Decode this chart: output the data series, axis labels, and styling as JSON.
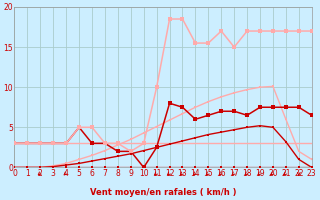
{
  "background_color": "#cceeff",
  "grid_color": "#aacccc",
  "xlabel": "Vent moyen/en rafales ( km/h )",
  "xlim": [
    0,
    23
  ],
  "ylim": [
    0,
    20
  ],
  "yticks": [
    0,
    5,
    10,
    15,
    20
  ],
  "xticks": [
    0,
    1,
    2,
    3,
    4,
    5,
    6,
    7,
    8,
    9,
    10,
    11,
    12,
    13,
    14,
    15,
    16,
    17,
    18,
    19,
    20,
    21,
    22,
    23
  ],
  "lines": [
    {
      "x": [
        0,
        1,
        2,
        3,
        4,
        5,
        6,
        7,
        8,
        9,
        10,
        11,
        12,
        13,
        14,
        15,
        16,
        17,
        18,
        19,
        20,
        21,
        22,
        23
      ],
      "y": [
        0,
        0,
        0,
        0,
        0,
        0,
        0,
        0,
        0,
        0,
        0,
        0,
        0,
        0,
        0,
        0,
        0,
        0,
        0,
        0,
        0,
        0,
        0,
        0
      ],
      "color": "#cc0000",
      "lw": 0.9,
      "marker": "s",
      "ms": 1.5,
      "zorder": 3
    },
    {
      "x": [
        0,
        1,
        2,
        3,
        4,
        5,
        6,
        7,
        8,
        9,
        10,
        11,
        12,
        13,
        14,
        15,
        16,
        17,
        18,
        19,
        20,
        21,
        22,
        23
      ],
      "y": [
        3,
        3,
        3,
        3,
        3,
        3,
        3,
        3,
        3,
        3,
        3,
        3,
        3,
        3,
        3,
        3,
        3,
        3,
        3,
        3,
        3,
        3,
        3,
        3
      ],
      "color": "#ffaaaa",
      "lw": 1.0,
      "marker": null,
      "ms": 0,
      "zorder": 2
    },
    {
      "x": [
        0,
        1,
        2,
        3,
        4,
        5,
        6,
        7,
        8,
        9,
        10,
        11,
        12,
        13,
        14,
        15,
        16,
        17,
        18,
        19,
        20,
        21,
        22,
        23
      ],
      "y": [
        0,
        0,
        0,
        0.1,
        0.3,
        0.5,
        0.8,
        1.1,
        1.4,
        1.7,
        2.1,
        2.5,
        2.9,
        3.3,
        3.7,
        4.1,
        4.4,
        4.7,
        5.0,
        5.2,
        5.0,
        3.2,
        1.0,
        0.0
      ],
      "color": "#cc0000",
      "lw": 1.0,
      "marker": "s",
      "ms": 1.8,
      "zorder": 3
    },
    {
      "x": [
        0,
        1,
        2,
        3,
        4,
        5,
        6,
        7,
        8,
        9,
        10,
        11,
        12,
        13,
        14,
        15,
        16,
        17,
        18,
        19,
        20,
        21,
        22,
        23
      ],
      "y": [
        0,
        0,
        0,
        0.2,
        0.5,
        1.0,
        1.5,
        2.1,
        2.8,
        3.5,
        4.3,
        5.1,
        5.9,
        6.7,
        7.5,
        8.2,
        8.8,
        9.3,
        9.7,
        10.0,
        10.1,
        6.0,
        2.0,
        1.0
      ],
      "color": "#ffaaaa",
      "lw": 1.0,
      "marker": "s",
      "ms": 1.8,
      "zorder": 2
    },
    {
      "x": [
        0,
        1,
        2,
        3,
        4,
        5,
        6,
        7,
        8,
        9,
        10,
        11,
        12,
        13,
        14,
        15,
        16,
        17,
        18,
        19,
        20,
        21,
        22,
        23
      ],
      "y": [
        3,
        3,
        3,
        3,
        3,
        5,
        3,
        3,
        2,
        2,
        0,
        2.5,
        8,
        7.5,
        6,
        6.5,
        7,
        7,
        6.5,
        7.5,
        7.5,
        7.5,
        7.5,
        6.5
      ],
      "color": "#cc0000",
      "lw": 1.1,
      "marker": "s",
      "ms": 2.5,
      "zorder": 4
    },
    {
      "x": [
        0,
        1,
        2,
        3,
        4,
        5,
        6,
        7,
        8,
        9,
        10,
        11,
        12,
        13,
        14,
        15,
        16,
        17,
        18,
        19,
        20,
        21,
        22,
        23
      ],
      "y": [
        3,
        3,
        3,
        3,
        3,
        5,
        5,
        3,
        3,
        2,
        3,
        10,
        18.5,
        18.5,
        15.5,
        15.5,
        17,
        15,
        17,
        17,
        17,
        17,
        17,
        17
      ],
      "color": "#ffaaaa",
      "lw": 1.1,
      "marker": "s",
      "ms": 2.5,
      "zorder": 4
    }
  ],
  "arrows_diagonal": [
    2,
    4,
    11,
    12,
    13,
    14,
    15,
    16,
    17,
    18,
    19,
    20,
    21
  ],
  "arrow_down": 22,
  "arrow_color": "#cc0000"
}
